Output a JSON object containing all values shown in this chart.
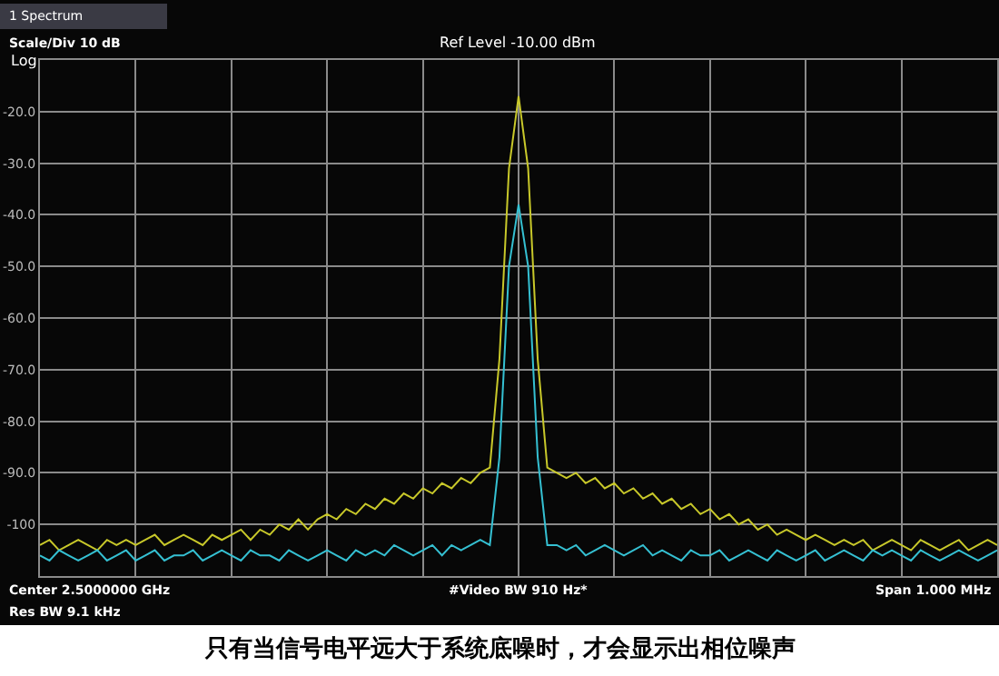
{
  "chart_data": {
    "type": "line",
    "title": "Ref Level -10.00 dBm",
    "annotations": [
      "1 Spectrum",
      "Scale/Div 10 dB",
      "Log",
      "Center 2.5000000 GHz",
      "Res BW 9.1 kHz",
      "#Video BW 910 Hz*",
      "Span 1.000 MHz",
      "只有当信号电平远大于系统底噪时，才会显示出相位噪声"
    ],
    "categories": [
      null,
      null,
      null,
      null,
      null,
      null,
      null,
      null,
      null,
      null,
      null,
      null,
      null,
      null,
      null,
      null,
      null,
      null,
      null,
      null,
      null,
      null,
      null,
      null,
      null,
      null,
      null,
      null,
      null,
      null,
      null,
      null,
      null,
      null,
      null,
      null,
      null,
      null,
      null,
      null,
      null,
      null,
      null,
      null,
      null,
      null,
      null,
      null,
      null,
      null,
      null,
      null,
      null,
      null,
      null,
      null,
      null,
      null,
      null,
      null,
      null,
      null,
      null,
      null,
      null,
      null,
      null,
      null,
      null,
      null,
      null,
      null,
      null,
      null,
      null,
      null,
      null,
      null,
      null,
      null,
      null,
      null,
      null,
      null,
      null,
      null,
      null,
      null,
      null,
      null,
      null,
      null,
      null,
      null,
      null,
      null,
      null,
      null,
      null,
      null,
      null
    ],
    "series": [
      {
        "color": "#c8c82a",
        "values": [
          -104,
          -103,
          -105,
          -104,
          -103,
          -104,
          -105,
          -103,
          -104,
          -103,
          -104,
          -103,
          -102,
          -104,
          -103,
          -102,
          -103,
          -104,
          -102,
          -103,
          -102,
          -101,
          -103,
          -101,
          -102,
          -100,
          -101,
          -99,
          -101,
          -99,
          -98,
          -99,
          -97,
          -98,
          -96,
          -97,
          -95,
          -96,
          -94,
          -95,
          -93,
          -94,
          -92,
          -93,
          -91,
          -92,
          -90,
          -89,
          -68,
          -31,
          -17,
          -31,
          -68,
          -89,
          -90,
          -91,
          -90,
          -92,
          -91,
          -93,
          -92,
          -94,
          -93,
          -95,
          -94,
          -96,
          -95,
          -97,
          -96,
          -98,
          -97,
          -99,
          -98,
          -100,
          -99,
          -101,
          -100,
          -102,
          -101,
          -102,
          -103,
          -102,
          -103,
          -104,
          -103,
          -104,
          -103,
          -105,
          -104,
          -103,
          -104,
          -105,
          -103,
          -104,
          -105,
          -104,
          -103,
          -105,
          -104,
          -103,
          -104
        ]
      },
      {
        "color": "#35c0d2",
        "values": [
          -106,
          -107,
          -105,
          -106,
          -107,
          -106,
          -105,
          -107,
          -106,
          -105,
          -107,
          -106,
          -105,
          -107,
          -106,
          -106,
          -105,
          -107,
          -106,
          -105,
          -106,
          -107,
          -105,
          -106,
          -106,
          -107,
          -105,
          -106,
          -107,
          -106,
          -105,
          -106,
          -107,
          -105,
          -106,
          -105,
          -106,
          -104,
          -105,
          -106,
          -105,
          -104,
          -106,
          -104,
          -105,
          -104,
          -103,
          -104,
          -87,
          -50,
          -38,
          -50,
          -87,
          -104,
          -104,
          -105,
          -104,
          -106,
          -105,
          -104,
          -105,
          -106,
          -105,
          -104,
          -106,
          -105,
          -106,
          -107,
          -105,
          -106,
          -106,
          -105,
          -107,
          -106,
          -105,
          -106,
          -107,
          -105,
          -106,
          -107,
          -106,
          -105,
          -107,
          -106,
          -105,
          -106,
          -107,
          -105,
          -106,
          -105,
          -106,
          -107,
          -105,
          -106,
          -107,
          -106,
          -105,
          -106,
          -107,
          -106,
          -105
        ]
      }
    ],
    "ylim": [
      -110,
      -10
    ],
    "yticks": [
      {
        "value": -20,
        "label": "-20.0"
      },
      {
        "value": -30,
        "label": "-30.0"
      },
      {
        "value": -40,
        "label": "-40.0"
      },
      {
        "value": -50,
        "label": "-50.0"
      },
      {
        "value": -60,
        "label": "-60.0"
      },
      {
        "value": -70,
        "label": "-70.0"
      },
      {
        "value": -80,
        "label": "-80.0"
      },
      {
        "value": -90,
        "label": "-90.0"
      },
      {
        "value": -100,
        "label": "-100"
      }
    ],
    "grid": true,
    "marker": "none",
    "line_style": "solid",
    "tick_labels": "y"
  }
}
